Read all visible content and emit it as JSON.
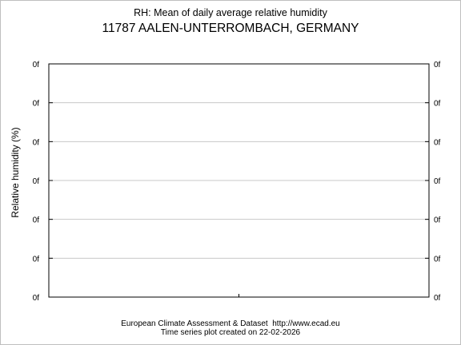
{
  "chart_data": {
    "type": "line",
    "title": "RH: Mean of daily average relative humidity",
    "subtitle": "11787 AALEN-UNTERROMBACH, GERMANY",
    "ylabel": "Relative humidity (%)",
    "xlabel": "",
    "y_tick_labels": [
      "0f",
      "0f",
      "0f",
      "0f",
      "0f",
      "0f",
      "0f"
    ],
    "series": [],
    "grid": true,
    "legend": "none"
  },
  "footer": {
    "source": "European Climate Assessment & Dataset  http://www.ecad.eu",
    "created": "Time series plot created on 22-02-2026"
  },
  "colors": {
    "axis": "#000000",
    "grid": "#c8c8c8",
    "frame": "#bfbfbf"
  }
}
